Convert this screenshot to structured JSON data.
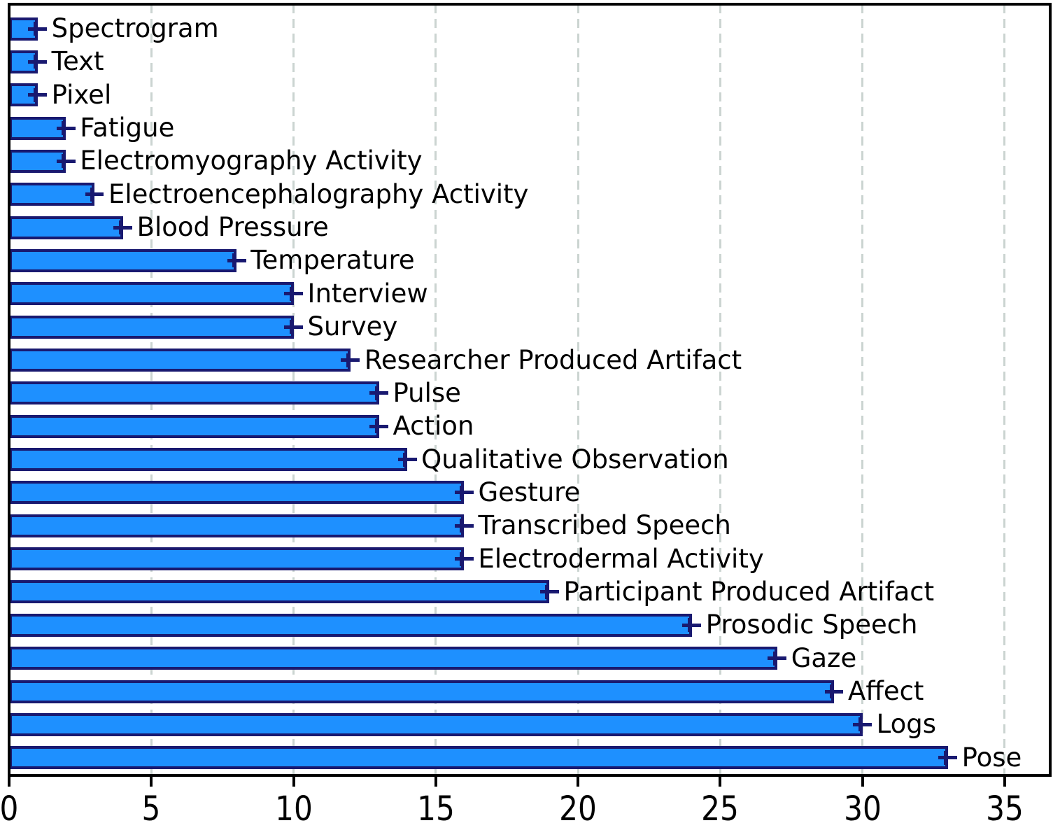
{
  "chart_data": {
    "type": "bar",
    "orientation": "horizontal",
    "title": "",
    "xlabel": "",
    "ylabel": "",
    "legend": "none",
    "grid": "vertical-dashed",
    "bar_label_position": "right-of-bar-end",
    "categories": [
      "Spectrogram",
      "Text",
      "Pixel",
      "Fatigue",
      "Electromyography Activity",
      "Electroencephalography Activity",
      "Blood Pressure",
      "Temperature",
      "Interview",
      "Survey",
      "Researcher Produced Artifact",
      "Pulse",
      "Action",
      "Qualitative Observation",
      "Gesture",
      "Transcribed Speech",
      "Electrodermal Activity",
      "Participant Produced Artifact",
      "Prosodic Speech",
      "Gaze",
      "Affect",
      "Logs",
      "Pose"
    ],
    "values": [
      1,
      1,
      1,
      2,
      2,
      3,
      4,
      8,
      10,
      10,
      12,
      13,
      13,
      14,
      16,
      16,
      16,
      19,
      24,
      27,
      29,
      30,
      33
    ],
    "xerr": 0.33,
    "xticks": [
      0,
      5,
      10,
      15,
      20,
      25,
      30,
      35
    ],
    "xtick_labels": [
      "0",
      "5",
      "10",
      "15",
      "20",
      "25",
      "30",
      "35"
    ],
    "xlim": [
      0,
      36.6
    ],
    "colors": {
      "bar_fill": "#1E90FF",
      "bar_edge": "#191970",
      "error_bar": "#191970",
      "gridline": "#CBD4D1",
      "axis": "#000000",
      "text": "#000000",
      "background": "#FFFFFF"
    }
  }
}
